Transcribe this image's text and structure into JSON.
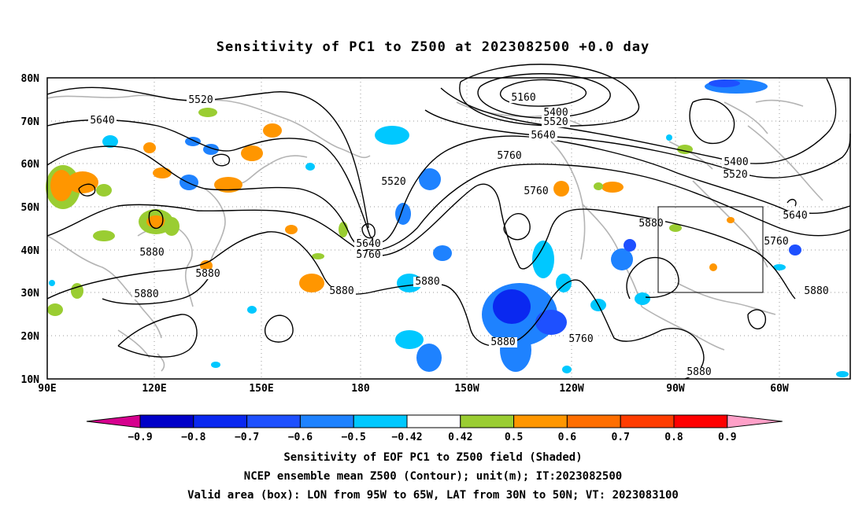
{
  "title": "Sensitivity of PC1 to Z500 at 2023082500 +0.0 day",
  "lat_labels": [
    "80N",
    "70N",
    "60N",
    "50N",
    "40N",
    "30N",
    "20N",
    "10N"
  ],
  "lon_labels": [
    "90E",
    "120E",
    "150E",
    "180",
    "150W",
    "120W",
    "90W",
    "60W"
  ],
  "contour_labels": [
    "5520",
    "5640",
    "5160",
    "5400",
    "5520",
    "5640",
    "5760",
    "5400",
    "5520",
    "5520",
    "5760",
    "5640",
    "5640",
    "5760",
    "5880",
    "5760",
    "5880",
    "5880",
    "5880",
    "5880",
    "5880",
    "5880",
    "5760",
    "5880",
    "5880"
  ],
  "colorbar": {
    "tick_labels": [
      "-0.9",
      "-0.8",
      "-0.7",
      "-0.6",
      "-0.5",
      "-0.42",
      "0.42",
      "0.5",
      "0.6",
      "0.7",
      "0.8",
      "0.9"
    ],
    "colors": [
      "#d6008e",
      "#0000c8",
      "#0a28f0",
      "#1e50ff",
      "#1e82ff",
      "#00c8ff",
      "#ffffff",
      "#9acd32",
      "#ff9600",
      "#ff6e00",
      "#ff3c00",
      "#ff0000",
      "#ffa0c8"
    ]
  },
  "valid_box": {
    "lon_from": "95W",
    "lon_to": "65W",
    "lat_from": "30N",
    "lat_to": "50N"
  },
  "footer": {
    "line1": "Sensitivity of EOF PC1 to Z500 field (Shaded)",
    "line2": "NCEP ensemble mean Z500 (Contour); unit(m); IT:2023082500",
    "line3": "Valid area (box): LON from 95W to 65W, LAT from 30N to 50N; VT: 2023083100"
  }
}
